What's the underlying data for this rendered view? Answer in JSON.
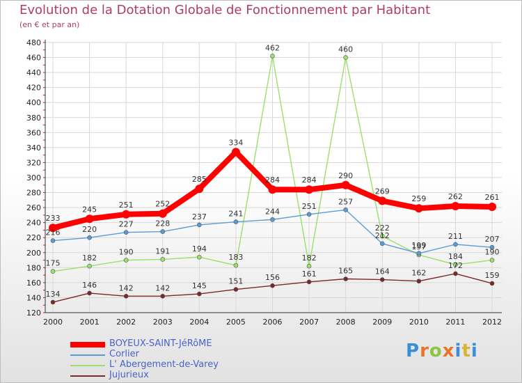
{
  "title": "Evolution de la Dotation Globale de Fonctionnement par Habitant",
  "subtitle": "(en € et par an)",
  "logo": {
    "text": "Proxiti",
    "letter_colors": [
      "#3a8fd6",
      "#e8742a",
      "#8cc63f",
      "#e8742a",
      "#3a8fd6",
      "#d6b43a",
      "#3a8fd6"
    ]
  },
  "colors": {
    "title": "#b13a6b",
    "axis_tick_marks": "#e0004a",
    "grid": "#d8d8d8"
  },
  "chart_data": {
    "type": "line",
    "title": "Evolution de la Dotation Globale de Fonctionnement par Habitant",
    "subtitle": "(en € et par an)",
    "xlabel": "",
    "ylabel": "",
    "categories": [
      "2000",
      "2001",
      "2002",
      "2003",
      "2004",
      "2005",
      "2006",
      "2007",
      "2008",
      "2009",
      "2010",
      "2011",
      "2012"
    ],
    "ylim": [
      120,
      480
    ],
    "ytick_step": 20,
    "grid": true,
    "legend_position": "bottom-left",
    "series": [
      {
        "name": "BOYEUX-SAINT-JéRôME",
        "color": "#ff0000",
        "weight": "thick",
        "label_position": "above",
        "values": [
          233,
          245,
          251,
          252,
          285,
          334,
          284,
          284,
          290,
          269,
          259,
          262,
          261
        ]
      },
      {
        "name": "Corlier",
        "color": "#5b9bd5",
        "weight": "thin",
        "label_position": "above",
        "values": [
          216,
          220,
          227,
          228,
          237,
          241,
          244,
          251,
          257,
          212,
          199,
          211,
          207
        ]
      },
      {
        "name": "L' Abergement-de-Varey",
        "color": "#9ae06a",
        "weight": "thin",
        "label_position": "above",
        "values": [
          175,
          182,
          190,
          191,
          194,
          183,
          462,
          182,
          460,
          222,
          197,
          184,
          190
        ]
      },
      {
        "name": "Jujurieux",
        "color": "#7a2828",
        "weight": "thin",
        "label_position": "above",
        "values": [
          134,
          146,
          142,
          142,
          145,
          151,
          156,
          161,
          165,
          164,
          162,
          172,
          159
        ]
      }
    ]
  }
}
